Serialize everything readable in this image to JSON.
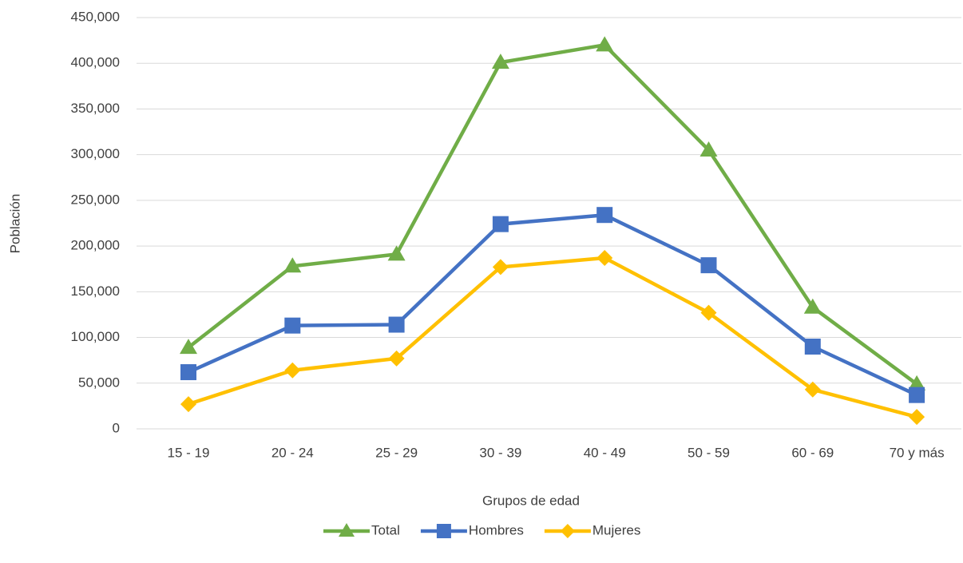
{
  "chart_data": {
    "type": "line",
    "x_label": "Grupos de edad",
    "y_label": "Población",
    "categories": [
      "15 - 19",
      "20 - 24",
      "25 - 29",
      "30 - 39",
      "40 - 49",
      "50 - 59",
      "60 - 69",
      "70 y más"
    ],
    "series": [
      {
        "name": "Total",
        "color": "#70ad47",
        "marker": "triangle",
        "values": [
          89000,
          178000,
          191000,
          401000,
          420000,
          305000,
          133000,
          49000
        ]
      },
      {
        "name": "Hombres",
        "color": "#4472c4",
        "marker": "square",
        "values": [
          62000,
          113000,
          114000,
          224000,
          234000,
          179000,
          90000,
          37000
        ]
      },
      {
        "name": "Mujeres",
        "color": "#ffc000",
        "marker": "diamond",
        "values": [
          27000,
          64000,
          77000,
          177000,
          187000,
          127000,
          43000,
          13000
        ]
      }
    ],
    "ylim": [
      0,
      450000
    ],
    "yticks": [
      0,
      {
        "value": 50000,
        "label": "50,000"
      },
      {
        "value": 100000,
        "label": "100,000"
      },
      {
        "value": 150000,
        "label": "150,000"
      },
      {
        "value": 200000,
        "label": "200,000"
      },
      {
        "value": 250000,
        "label": "250,000"
      },
      {
        "value": 300000,
        "label": "300,000"
      },
      {
        "value": 350000,
        "label": "350,000"
      },
      {
        "value": 400000,
        "label": "400,000"
      },
      {
        "value": 450000,
        "label": "450,000"
      }
    ],
    "grid": true,
    "legend": "bottom"
  }
}
